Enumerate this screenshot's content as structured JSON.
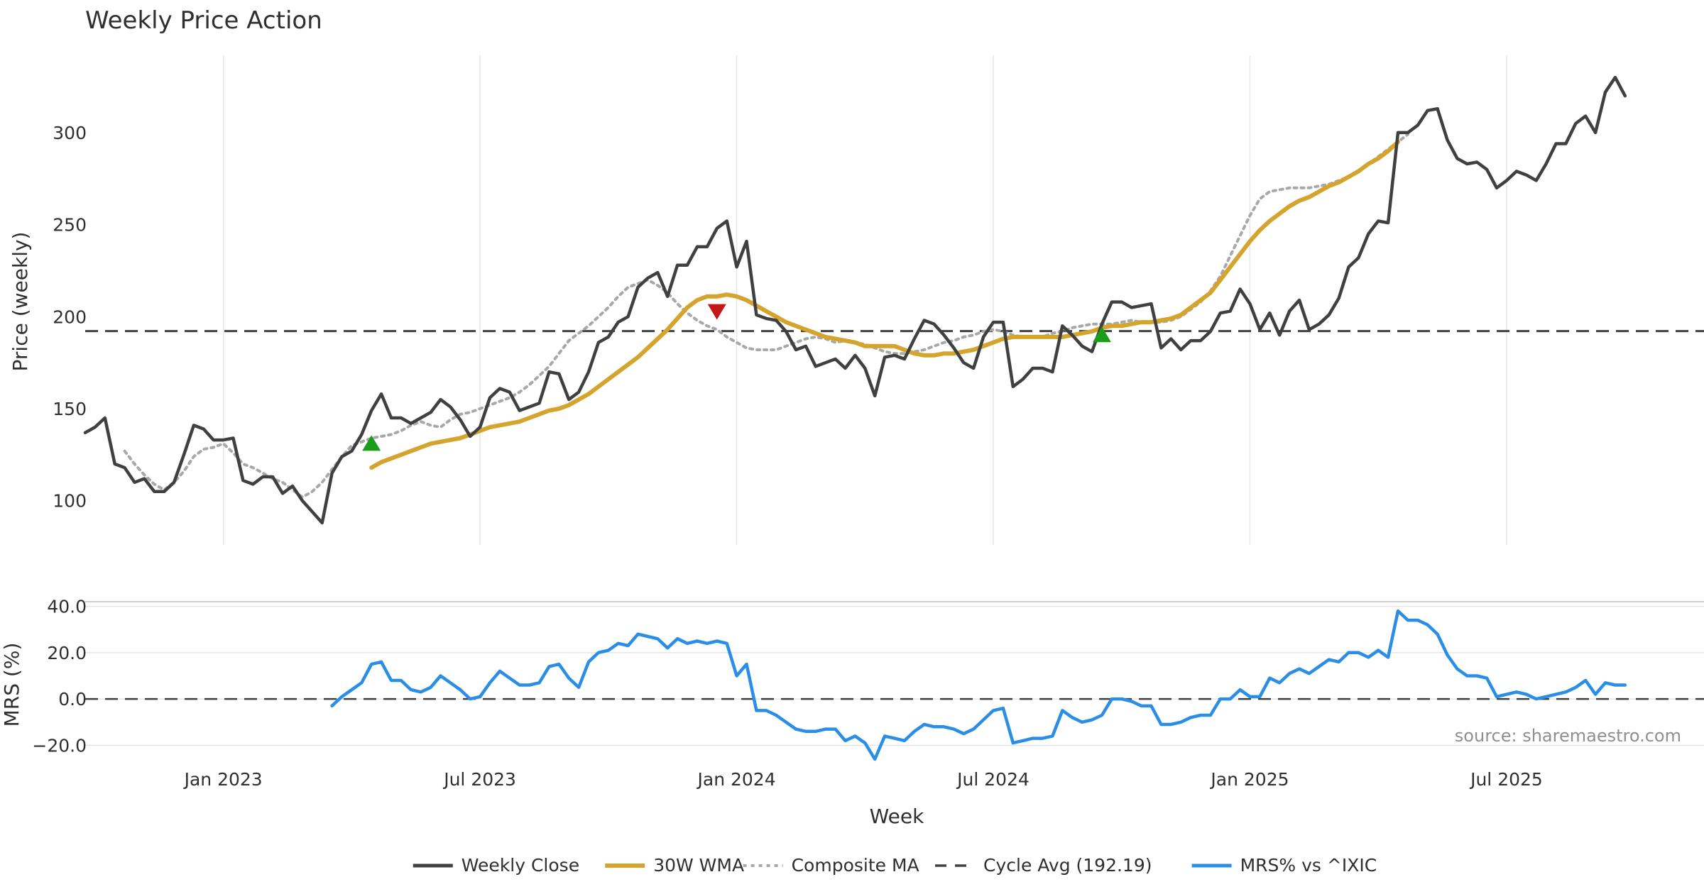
{
  "chart_data": {
    "type": "line",
    "title": "Weekly Price Action",
    "xlabel": "Week",
    "source": "source: sharemaestro.com",
    "x_ticks": [
      {
        "label": "Jan 2023",
        "t": 14
      },
      {
        "label": "Jul 2023",
        "t": 40
      },
      {
        "label": "Jan 2024",
        "t": 66
      },
      {
        "label": "Jul 2024",
        "t": 92
      },
      {
        "label": "Jan 2025",
        "t": 118
      },
      {
        "label": "Jul 2025",
        "t": 144
      }
    ],
    "x_range": [
      0,
      164
    ],
    "price_panel": {
      "ylabel": "Price (weekly)",
      "ylim": [
        76,
        342
      ],
      "yticks": [
        "100",
        "150",
        "200",
        "250",
        "300"
      ],
      "cycle_avg": 192.19,
      "weekly_close": [
        137,
        140,
        145,
        120,
        118,
        110,
        112,
        105,
        105,
        110,
        125,
        141,
        139,
        133,
        133,
        134,
        111,
        109,
        113,
        113,
        104,
        108,
        100,
        94,
        88,
        115,
        124,
        127,
        136,
        149,
        158,
        145,
        145,
        142,
        145,
        148,
        155,
        151,
        144,
        135,
        140,
        156,
        161,
        159,
        149,
        151,
        153,
        170,
        169,
        155,
        159,
        170,
        186,
        189,
        197,
        200,
        216,
        221,
        224,
        211,
        228,
        228,
        238,
        238,
        248,
        252,
        227,
        241,
        201,
        199,
        198,
        192,
        182,
        184,
        173,
        175,
        177,
        172,
        179,
        172,
        157,
        178,
        179,
        177,
        188,
        198,
        196,
        190,
        183,
        175,
        172,
        189,
        197,
        197,
        162,
        166,
        172,
        172,
        170,
        195,
        190,
        184,
        181,
        196,
        208,
        208,
        205,
        206,
        207,
        183,
        188,
        182,
        187,
        187,
        192,
        202,
        203,
        215,
        207,
        193,
        202,
        190,
        203,
        209,
        193,
        196,
        201,
        210,
        227,
        232,
        245,
        252,
        251,
        300,
        300,
        304,
        312,
        313,
        296,
        286,
        283,
        284,
        280,
        270,
        274,
        279,
        277,
        274,
        283,
        294,
        294,
        305,
        309,
        300,
        322,
        330,
        320
      ],
      "wma30": {
        "start": 29,
        "values": [
          118,
          121,
          123,
          125,
          127,
          129,
          131,
          132,
          133,
          134,
          136,
          138,
          140,
          141,
          142,
          143,
          145,
          147,
          149,
          150,
          152,
          155,
          158,
          162,
          166,
          170,
          174,
          178,
          183,
          188,
          193,
          199,
          205,
          209,
          211,
          211,
          212,
          211,
          209,
          206,
          203,
          200,
          197,
          195,
          193,
          191,
          189,
          188,
          187,
          186,
          184,
          184,
          184,
          184,
          182,
          180,
          179,
          179,
          180,
          180,
          181,
          182,
          184,
          186,
          188,
          189,
          189,
          189,
          189,
          189,
          189,
          190,
          191,
          192,
          194,
          195,
          195,
          196,
          197,
          197,
          198,
          199,
          201,
          205,
          209,
          213,
          220,
          227,
          234,
          241,
          247,
          252,
          256,
          260,
          263,
          265,
          268,
          271,
          273,
          276,
          279,
          283,
          286,
          290,
          295
        ]
      },
      "composite_ma": {
        "start": 4,
        "values": [
          127,
          120,
          114,
          109,
          106,
          110,
          116,
          124,
          128,
          129,
          131,
          126,
          120,
          118,
          115,
          112,
          110,
          106,
          102,
          105,
          110,
          117,
          124,
          130,
          132,
          134,
          135,
          136,
          138,
          141,
          143,
          141,
          140,
          144,
          147,
          148,
          150,
          152,
          154,
          156,
          159,
          163,
          168,
          173,
          180,
          187,
          191,
          195,
          200,
          205,
          211,
          216,
          218,
          220,
          217,
          213,
          207,
          202,
          198,
          195,
          193,
          189,
          186,
          183,
          182,
          182,
          182,
          184,
          186,
          188,
          189,
          188,
          186,
          187,
          186,
          185,
          183,
          181,
          180,
          180,
          181,
          182,
          184,
          186,
          187,
          189,
          190,
          192,
          193,
          192,
          190,
          189,
          189,
          189,
          191,
          192,
          194,
          195,
          196,
          196,
          196,
          197,
          198,
          197,
          197,
          197,
          198,
          200,
          204,
          208,
          214,
          222,
          233,
          244,
          255,
          264,
          268,
          269,
          270,
          270,
          270,
          271,
          272,
          274,
          276,
          279,
          283,
          287,
          291,
          295,
          299
        ]
      },
      "signals": [
        {
          "type": "buy",
          "t": 29,
          "value": 131
        },
        {
          "type": "sell",
          "t": 64,
          "value": 203
        },
        {
          "type": "buy",
          "t": 103,
          "value": 190
        }
      ]
    },
    "mrs_panel": {
      "ylabel": "MRS (%)",
      "ylim": [
        -26,
        42
      ],
      "yticks": [
        "−20.0",
        "0.0",
        "20.0",
        "40.0"
      ],
      "mrs": {
        "start": 25,
        "values": [
          -3,
          1,
          4,
          7,
          15,
          16,
          8,
          8,
          4,
          3,
          5,
          10,
          7,
          4,
          0,
          1,
          7,
          12,
          9,
          6,
          6,
          7,
          14,
          15,
          9,
          5,
          16,
          20,
          21,
          24,
          23,
          28,
          27,
          26,
          22,
          26,
          24,
          25,
          24,
          25,
          24,
          10,
          15,
          -5,
          -5,
          -7,
          -10,
          -13,
          -14,
          -14,
          -13,
          -13,
          -18,
          -16,
          -19,
          -26,
          -16,
          -17,
          -18,
          -14,
          -11,
          -12,
          -12,
          -13,
          -15,
          -13,
          -9,
          -5,
          -4,
          -19,
          -18,
          -17,
          -17,
          -16,
          -5,
          -8,
          -10,
          -9,
          -7,
          0,
          0,
          -1,
          -3,
          -3,
          -11,
          -11,
          -10,
          -8,
          -7,
          -7,
          0,
          0,
          4,
          1,
          1,
          9,
          7,
          11,
          13,
          11,
          14,
          17,
          16,
          20,
          20,
          18,
          21,
          18,
          38,
          34,
          34,
          32,
          28,
          19,
          13,
          10,
          10,
          9,
          1,
          2,
          3,
          2,
          0,
          1,
          2,
          3,
          5,
          8,
          2,
          7,
          6,
          6
        ]
      }
    },
    "legend": [
      {
        "label": "Weekly Close",
        "color": "#404040",
        "style": "solid"
      },
      {
        "label": "30W WMA",
        "color": "#d4a42d",
        "style": "thick"
      },
      {
        "label": "Composite MA",
        "color": "#a8a8a8",
        "style": "dotted"
      },
      {
        "label": "Cycle Avg (192.19)",
        "color": "#404040",
        "style": "dashed"
      },
      {
        "label": "MRS% vs ^IXIC",
        "color": "#2b8ee6",
        "style": "solid"
      }
    ],
    "colors": {
      "close": "#404040",
      "wma": "#d4a42d",
      "composite": "#a8a8a8",
      "cycle": "#404040",
      "mrs": "#2b8ee6",
      "buy": "#1a9e1a",
      "sell": "#c41717",
      "grid": "#e6e6e6"
    }
  }
}
